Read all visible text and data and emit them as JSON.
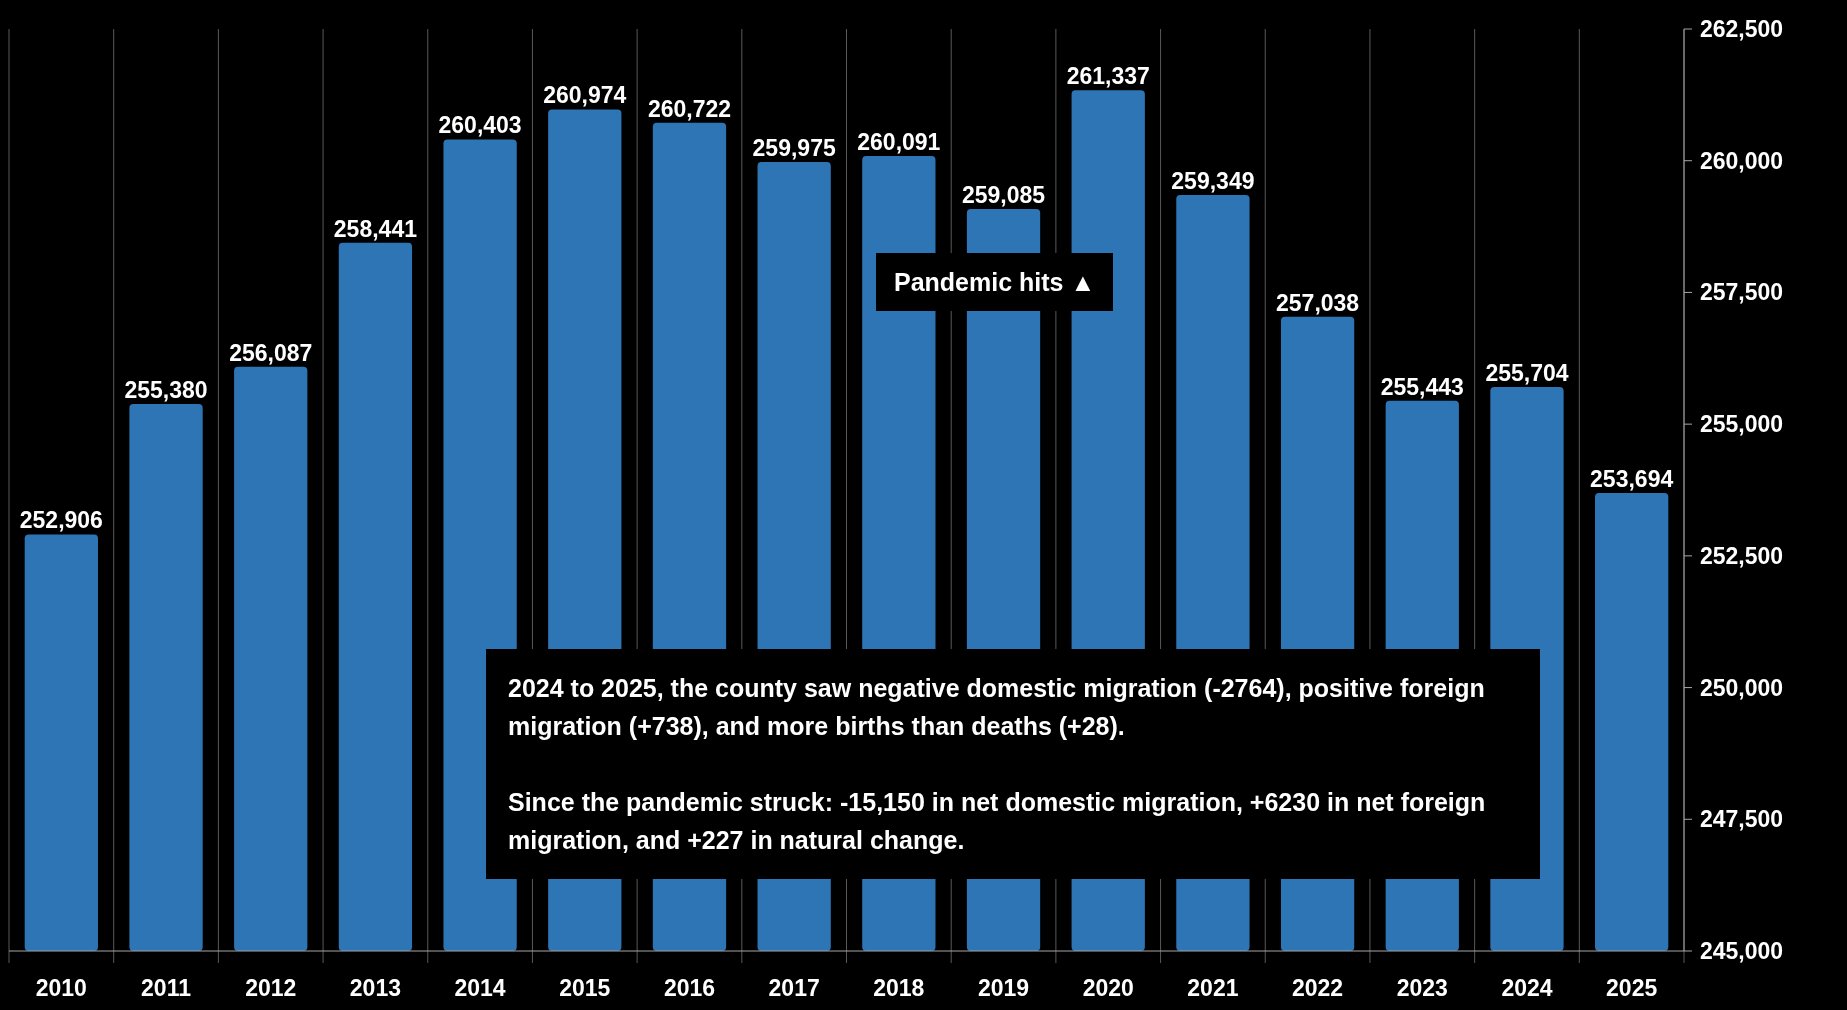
{
  "chart_data": {
    "type": "bar",
    "categories": [
      "2010",
      "2011",
      "2012",
      "2013",
      "2014",
      "2015",
      "2016",
      "2017",
      "2018",
      "2019",
      "2020",
      "2021",
      "2022",
      "2023",
      "2024",
      "2025"
    ],
    "values": [
      252906,
      255380,
      256087,
      258441,
      260403,
      260974,
      260722,
      259975,
      260091,
      259085,
      261337,
      259349,
      257038,
      255443,
      255704,
      253694
    ],
    "color": "#2e75b6",
    "ylim": [
      245000,
      262500
    ],
    "yticks": [
      {
        "value": 245000,
        "label": "245,000"
      },
      {
        "value": 247500,
        "label": "247,500"
      },
      {
        "value": 250000,
        "label": "250,000"
      },
      {
        "value": 252500,
        "label": "252,500"
      },
      {
        "value": 255000,
        "label": "255,000"
      },
      {
        "value": 257500,
        "label": "257,500"
      },
      {
        "value": 260000,
        "label": "260,000"
      },
      {
        "value": 262500,
        "label": "262,500"
      }
    ],
    "grid": "x",
    "value_labels": [
      "252,906",
      "255,380",
      "256,087",
      "258,441",
      "260,403",
      "260,974",
      "260,722",
      "259,975",
      "260,091",
      "259,085",
      "261,337",
      "259,349",
      "257,038",
      "255,443",
      "255,704",
      "253,694"
    ],
    "annotations": [
      "Pandemic hits ▲",
      "2024 to 2025, the county saw negative domestic migration (-2764), positive foreign migration (+738), and more births than deaths (+28).",
      "Since the pandemic struck: -15,150 in net domestic migration, +6230 in net foreign migration, and +227 in natural change."
    ]
  }
}
